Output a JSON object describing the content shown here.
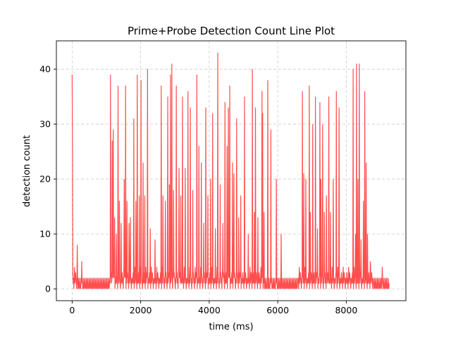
{
  "chart_data": {
    "type": "line",
    "title": "Prime+Probe Detection Count Line Plot",
    "xlabel": "time (ms)",
    "ylabel": "detection count",
    "xlim": [
      -460,
      9740
    ],
    "ylim": [
      -2.15,
      45.15
    ],
    "xticks": [
      0,
      2000,
      4000,
      6000,
      8000
    ],
    "yticks": [
      0,
      10,
      20,
      30,
      40
    ],
    "xtick_labels": [
      "0",
      "2000",
      "4000",
      "6000",
      "8000"
    ],
    "ytick_labels": [
      "0",
      "10",
      "20",
      "30",
      "40"
    ],
    "grid": true,
    "grid_style": "dashed",
    "line_color": "#ff4444",
    "series": [
      {
        "x_start": 0,
        "x_step": 10,
        "baseline_cycle": [
          1,
          2,
          3,
          1,
          2,
          0,
          2,
          4,
          1,
          2,
          3,
          2,
          1,
          0,
          2,
          1
        ],
        "quiet_cycle": [
          1,
          0,
          2,
          1,
          0,
          1,
          2,
          0
        ],
        "active_ranges": [
          [
            0,
            130
          ],
          [
            1100,
            5600
          ],
          [
            6600,
            8800
          ]
        ],
        "x_end": 9250,
        "spikes": [
          {
            "x": 0,
            "y": 39
          },
          {
            "x": 10,
            "y": 26
          },
          {
            "x": 150,
            "y": 8
          },
          {
            "x": 280,
            "y": 5
          },
          {
            "x": 1120,
            "y": 39
          },
          {
            "x": 1170,
            "y": 27
          },
          {
            "x": 1200,
            "y": 29
          },
          {
            "x": 1240,
            "y": 13
          },
          {
            "x": 1290,
            "y": 10
          },
          {
            "x": 1340,
            "y": 37
          },
          {
            "x": 1380,
            "y": 16
          },
          {
            "x": 1430,
            "y": 12
          },
          {
            "x": 1520,
            "y": 20
          },
          {
            "x": 1560,
            "y": 37
          },
          {
            "x": 1600,
            "y": 16
          },
          {
            "x": 1660,
            "y": 12
          },
          {
            "x": 1700,
            "y": 13
          },
          {
            "x": 1800,
            "y": 31
          },
          {
            "x": 1860,
            "y": 16
          },
          {
            "x": 1900,
            "y": 39
          },
          {
            "x": 1960,
            "y": 17
          },
          {
            "x": 2010,
            "y": 38
          },
          {
            "x": 2070,
            "y": 23
          },
          {
            "x": 2120,
            "y": 17
          },
          {
            "x": 2200,
            "y": 40
          },
          {
            "x": 2280,
            "y": 11
          },
          {
            "x": 2420,
            "y": 9
          },
          {
            "x": 2600,
            "y": 37
          },
          {
            "x": 2650,
            "y": 17
          },
          {
            "x": 2720,
            "y": 16
          },
          {
            "x": 2790,
            "y": 35
          },
          {
            "x": 2840,
            "y": 19
          },
          {
            "x": 2870,
            "y": 39
          },
          {
            "x": 2910,
            "y": 41
          },
          {
            "x": 2960,
            "y": 18
          },
          {
            "x": 3040,
            "y": 37
          },
          {
            "x": 3120,
            "y": 22
          },
          {
            "x": 3170,
            "y": 17
          },
          {
            "x": 3220,
            "y": 35
          },
          {
            "x": 3300,
            "y": 22
          },
          {
            "x": 3380,
            "y": 36
          },
          {
            "x": 3450,
            "y": 33
          },
          {
            "x": 3520,
            "y": 18
          },
          {
            "x": 3640,
            "y": 39
          },
          {
            "x": 3700,
            "y": 26
          },
          {
            "x": 3770,
            "y": 23
          },
          {
            "x": 3840,
            "y": 12
          },
          {
            "x": 3900,
            "y": 33
          },
          {
            "x": 3960,
            "y": 17
          },
          {
            "x": 4040,
            "y": 20
          },
          {
            "x": 4100,
            "y": 32
          },
          {
            "x": 4180,
            "y": 11
          },
          {
            "x": 4250,
            "y": 43
          },
          {
            "x": 4320,
            "y": 19
          },
          {
            "x": 4400,
            "y": 12
          },
          {
            "x": 4460,
            "y": 34
          },
          {
            "x": 4520,
            "y": 26
          },
          {
            "x": 4560,
            "y": 33
          },
          {
            "x": 4600,
            "y": 37
          },
          {
            "x": 4680,
            "y": 23
          },
          {
            "x": 4720,
            "y": 21
          },
          {
            "x": 4800,
            "y": 31
          },
          {
            "x": 4860,
            "y": 13
          },
          {
            "x": 4920,
            "y": 17
          },
          {
            "x": 5030,
            "y": 35
          },
          {
            "x": 5140,
            "y": 10
          },
          {
            "x": 5260,
            "y": 40
          },
          {
            "x": 5320,
            "y": 14
          },
          {
            "x": 5350,
            "y": 33
          },
          {
            "x": 5420,
            "y": 13
          },
          {
            "x": 5540,
            "y": 36
          },
          {
            "x": 5560,
            "y": 32
          },
          {
            "x": 5600,
            "y": 14
          },
          {
            "x": 5710,
            "y": 38
          },
          {
            "x": 5800,
            "y": 29
          },
          {
            "x": 5960,
            "y": 20
          },
          {
            "x": 6100,
            "y": 10
          },
          {
            "x": 6720,
            "y": 36
          },
          {
            "x": 6760,
            "y": 21
          },
          {
            "x": 6820,
            "y": 20
          },
          {
            "x": 6920,
            "y": 37
          },
          {
            "x": 6950,
            "y": 14
          },
          {
            "x": 7020,
            "y": 30
          },
          {
            "x": 7100,
            "y": 35
          },
          {
            "x": 7160,
            "y": 11
          },
          {
            "x": 7230,
            "y": 34
          },
          {
            "x": 7260,
            "y": 20
          },
          {
            "x": 7310,
            "y": 30
          },
          {
            "x": 7360,
            "y": 14
          },
          {
            "x": 7420,
            "y": 17
          },
          {
            "x": 7490,
            "y": 35
          },
          {
            "x": 7540,
            "y": 14
          },
          {
            "x": 7620,
            "y": 20
          },
          {
            "x": 7710,
            "y": 36
          },
          {
            "x": 7790,
            "y": 33
          },
          {
            "x": 8200,
            "y": 40
          },
          {
            "x": 8270,
            "y": 10
          },
          {
            "x": 8300,
            "y": 41
          },
          {
            "x": 8340,
            "y": 20
          },
          {
            "x": 8380,
            "y": 41
          },
          {
            "x": 8430,
            "y": 9
          },
          {
            "x": 8500,
            "y": 16
          },
          {
            "x": 8540,
            "y": 36
          },
          {
            "x": 8580,
            "y": 23
          },
          {
            "x": 8620,
            "y": 10
          },
          {
            "x": 8700,
            "y": 5
          },
          {
            "x": 8780,
            "y": 2
          },
          {
            "x": 9050,
            "y": 4
          }
        ]
      }
    ]
  }
}
